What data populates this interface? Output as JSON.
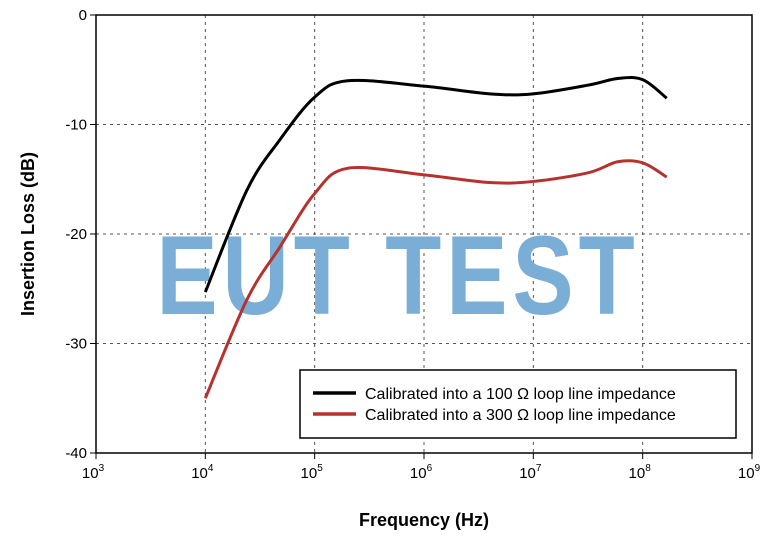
{
  "chart_data": {
    "type": "line",
    "title": "",
    "xlabel": "Frequency (Hz)",
    "ylabel": "Insertion Loss (dB)",
    "xscale": "log",
    "xlim": [
      1000,
      1000000000
    ],
    "ylim": [
      -40,
      0
    ],
    "xticks": [
      3,
      4,
      5,
      6,
      7,
      8,
      9
    ],
    "xtick_base": "10",
    "yticks": [
      0,
      -10,
      -20,
      -30,
      -40
    ],
    "ytick_labels": [
      "0",
      "-10",
      "-20",
      "-30",
      "-40"
    ],
    "grid": true,
    "legend_position": "bottom-right",
    "watermark": "EUT TEST",
    "watermark_color": "#7aaed6",
    "series": [
      {
        "name": "Calibrated into a 100 Ω loop line impedance",
        "color": "#000000",
        "x": [
          10000,
          24000,
          48000,
          100000,
          200000,
          1000000,
          4000000,
          10000000,
          32000000,
          59000000,
          100000000,
          166000000
        ],
        "y": [
          -25.3,
          -16.0,
          -11.4,
          -7.5,
          -6.0,
          -6.5,
          -7.2,
          -7.2,
          -6.4,
          -5.8,
          -5.9,
          -7.6
        ]
      },
      {
        "name": "Calibrated into a 300 Ω loop line impedance",
        "color": "#b5322e",
        "x": [
          10000,
          24000,
          48000,
          100000,
          200000,
          1000000,
          4000000,
          10000000,
          32000000,
          59000000,
          100000000,
          166000000
        ],
        "y": [
          -35.0,
          -26.0,
          -21.2,
          -16.3,
          -14.0,
          -14.6,
          -15.3,
          -15.2,
          -14.4,
          -13.4,
          -13.5,
          -14.8
        ]
      }
    ]
  }
}
